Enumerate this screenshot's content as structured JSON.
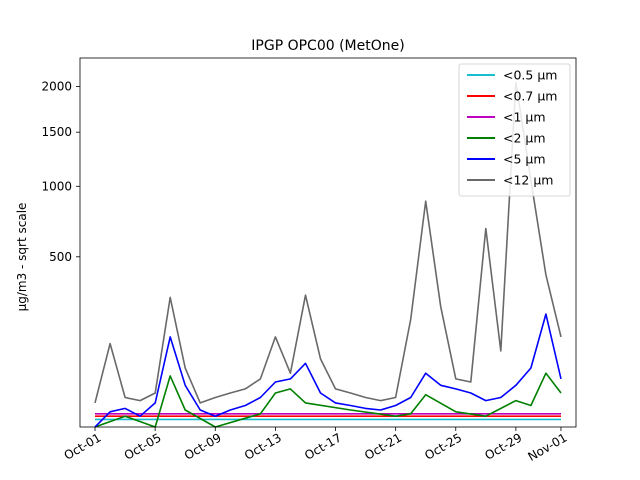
{
  "chart_data": {
    "type": "line",
    "title": "IPGP OPC00 (MetOne)",
    "xlabel": "",
    "ylabel": "µg/m3 - sqrt scale",
    "y_scale": "sqrt",
    "ylim": [
      0,
      2350
    ],
    "xlim": [
      "2023-09-30",
      "2023-11-02"
    ],
    "x_ticks": [
      "Oct-01",
      "Oct-05",
      "Oct-09",
      "Oct-13",
      "Oct-17",
      "Oct-21",
      "Oct-25",
      "Oct-29",
      "Nov-01"
    ],
    "x_tick_dates": [
      "2023-10-01",
      "2023-10-05",
      "2023-10-09",
      "2023-10-13",
      "2023-10-17",
      "2023-10-21",
      "2023-10-25",
      "2023-10-29",
      "2023-11-01"
    ],
    "y_ticks": [
      500,
      1000,
      1500,
      2000
    ],
    "y_tick_labels": [
      "500",
      "1000",
      "1500",
      "2000"
    ],
    "legend_position": "top-right",
    "series": [
      {
        "name": "<0.5 µm",
        "color": "#17becf",
        "x": [
          "2023-10-01",
          "2023-10-15",
          "2023-11-01"
        ],
        "values": [
          1,
          1,
          1
        ]
      },
      {
        "name": "<0.7 µm",
        "color": "#ff0000",
        "x": [
          "2023-10-01",
          "2023-10-15",
          "2023-11-01"
        ],
        "values": [
          2,
          2,
          2
        ]
      },
      {
        "name": "<1 µm",
        "color": "#bf00bf",
        "x": [
          "2023-10-01",
          "2023-10-15",
          "2023-11-01"
        ],
        "values": [
          3,
          3,
          3
        ]
      },
      {
        "name": "<2 µm",
        "color": "#008000",
        "x": [
          "2023-10-01",
          "2023-10-03",
          "2023-10-05",
          "2023-10-06",
          "2023-10-07",
          "2023-10-09",
          "2023-10-12",
          "2023-10-13",
          "2023-10-14",
          "2023-10-15",
          "2023-10-18",
          "2023-10-21",
          "2023-10-22",
          "2023-10-23",
          "2023-10-25",
          "2023-10-27",
          "2023-10-29",
          "2023-10-30",
          "2023-10-31",
          "2023-11-01"
        ],
        "values": [
          0,
          2,
          0,
          45,
          5,
          0,
          3,
          20,
          25,
          10,
          5,
          2,
          3,
          18,
          4,
          2,
          12,
          8,
          50,
          20
        ]
      },
      {
        "name": "<5 µm",
        "color": "#0000ff",
        "x": [
          "2023-10-01",
          "2023-10-02",
          "2023-10-03",
          "2023-10-04",
          "2023-10-05",
          "2023-10-06",
          "2023-10-07",
          "2023-10-08",
          "2023-10-09",
          "2023-10-10",
          "2023-10-11",
          "2023-10-12",
          "2023-10-13",
          "2023-10-14",
          "2023-10-15",
          "2023-10-16",
          "2023-10-17",
          "2023-10-18",
          "2023-10-19",
          "2023-10-20",
          "2023-10-21",
          "2023-10-22",
          "2023-10-23",
          "2023-10-24",
          "2023-10-25",
          "2023-10-26",
          "2023-10-27",
          "2023-10-28",
          "2023-10-29",
          "2023-10-30",
          "2023-10-31",
          "2023-11-01"
        ],
        "values": [
          0,
          4,
          6,
          2,
          10,
          140,
          30,
          5,
          2,
          5,
          8,
          15,
          35,
          40,
          70,
          20,
          10,
          8,
          6,
          5,
          8,
          15,
          50,
          30,
          25,
          20,
          12,
          15,
          30,
          60,
          220,
          40
        ]
      },
      {
        "name": "<12 µm",
        "color": "#696969",
        "x": [
          "2023-10-01",
          "2023-10-02",
          "2023-10-03",
          "2023-10-04",
          "2023-10-05",
          "2023-10-06",
          "2023-10-07",
          "2023-10-08",
          "2023-10-09",
          "2023-10-10",
          "2023-10-11",
          "2023-10-12",
          "2023-10-13",
          "2023-10-14",
          "2023-10-15",
          "2023-10-16",
          "2023-10-17",
          "2023-10-18",
          "2023-10-19",
          "2023-10-20",
          "2023-10-21",
          "2023-10-22",
          "2023-10-23",
          "2023-10-24",
          "2023-10-25",
          "2023-10-26",
          "2023-10-27",
          "2023-10-28",
          "2023-10-29",
          "2023-10-30",
          "2023-10-31",
          "2023-11-01"
        ],
        "values": [
          10,
          120,
          15,
          12,
          20,
          290,
          60,
          10,
          15,
          20,
          25,
          40,
          140,
          50,
          300,
          80,
          25,
          20,
          15,
          12,
          15,
          200,
          880,
          250,
          40,
          35,
          680,
          100,
          2050,
          1050,
          400,
          140
        ]
      }
    ]
  }
}
